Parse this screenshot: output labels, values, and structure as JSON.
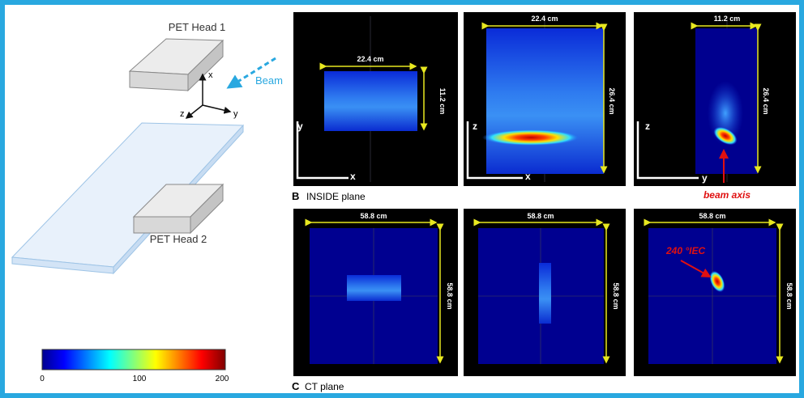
{
  "diagram": {
    "head1": "PET Head 1",
    "beam": "Beam",
    "axes": {
      "x": "x",
      "y": "y",
      "z": "z"
    },
    "head2": "PET Head 2"
  },
  "colorbar": {
    "ticks": [
      "0",
      "100",
      "200"
    ]
  },
  "inside": {
    "label": "B",
    "title": "INSIDE plane",
    "panels": [
      {
        "width": "22.4 cm",
        "height": "11.2 cm",
        "vaxis": "y",
        "haxis": "x"
      },
      {
        "width": "22.4 cm",
        "height": "26.4 cm",
        "vaxis": "z",
        "haxis": "x"
      },
      {
        "width": "11.2 cm",
        "height": "26.4 cm",
        "vaxis": "z",
        "haxis": "y",
        "annotation": "beam axis"
      }
    ]
  },
  "ct": {
    "label": "C",
    "title": "CT plane",
    "panels": [
      {
        "width": "58.8 cm",
        "height": "58.8 cm"
      },
      {
        "width": "58.8 cm",
        "height": "58.8 cm"
      },
      {
        "width": "58.8 cm",
        "height": "58.8 cm",
        "annotation": "240 °IEC"
      }
    ]
  }
}
